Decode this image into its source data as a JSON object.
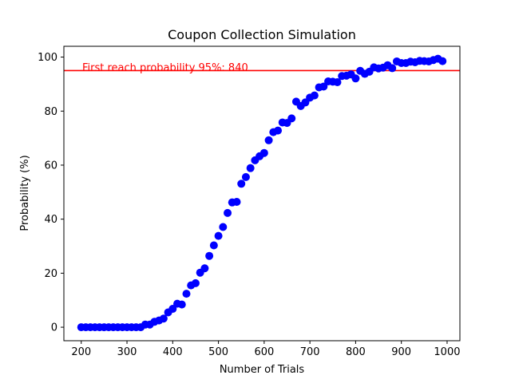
{
  "chart_data": {
    "type": "scatter",
    "title": "Coupon Collection Simulation",
    "xlabel": "Number of Trials",
    "ylabel": "Probability (%)",
    "xlim": [
      162,
      1028
    ],
    "ylim": [
      -5,
      104
    ],
    "xticks": [
      200,
      300,
      400,
      500,
      600,
      700,
      800,
      900,
      1000
    ],
    "yticks": [
      0,
      20,
      40,
      60,
      80,
      100
    ],
    "grid": false,
    "point_color": "#0000ff",
    "x": [
      200,
      210,
      220,
      230,
      240,
      250,
      260,
      270,
      280,
      290,
      300,
      310,
      320,
      330,
      340,
      350,
      360,
      370,
      380,
      390,
      400,
      410,
      420,
      430,
      440,
      450,
      460,
      470,
      480,
      490,
      500,
      510,
      520,
      530,
      540,
      550,
      560,
      570,
      580,
      590,
      600,
      610,
      620,
      630,
      640,
      650,
      660,
      670,
      680,
      690,
      700,
      710,
      720,
      730,
      740,
      750,
      760,
      770,
      780,
      790,
      800,
      810,
      820,
      830,
      840,
      850,
      860,
      870,
      880,
      890,
      900,
      910,
      920,
      930,
      940,
      950,
      960,
      970,
      980,
      990
    ],
    "y": [
      0,
      0,
      0,
      0,
      0,
      0,
      0,
      0,
      0,
      0,
      0,
      0,
      0,
      0,
      1,
      1,
      2,
      2.5,
      3.2,
      5.5,
      6.8,
      8.7,
      8.4,
      12.4,
      15.5,
      16.3,
      20.2,
      21.8,
      26.4,
      30.3,
      33.8,
      37.1,
      42.3,
      46.2,
      46.4,
      53.1,
      55.6,
      58.9,
      61.8,
      63.3,
      64.5,
      69.2,
      72.2,
      72.8,
      75.8,
      75.6,
      77.3,
      83.5,
      81.9,
      83.2,
      85,
      85.8,
      88.8,
      89.1,
      91,
      90.9,
      90.7,
      93,
      93.1,
      93.6,
      92.1,
      94.9,
      93.8,
      94.6,
      96.2,
      95.8,
      96.1,
      97,
      95.9,
      98.4,
      97.8,
      97.8,
      98.3,
      98.1,
      98.6,
      98.5,
      98.4,
      98.9,
      99.4,
      98.5
    ],
    "reference_line": {
      "y": 95,
      "color": "#ff0000",
      "label": "First reach probability 95%: 840"
    }
  }
}
